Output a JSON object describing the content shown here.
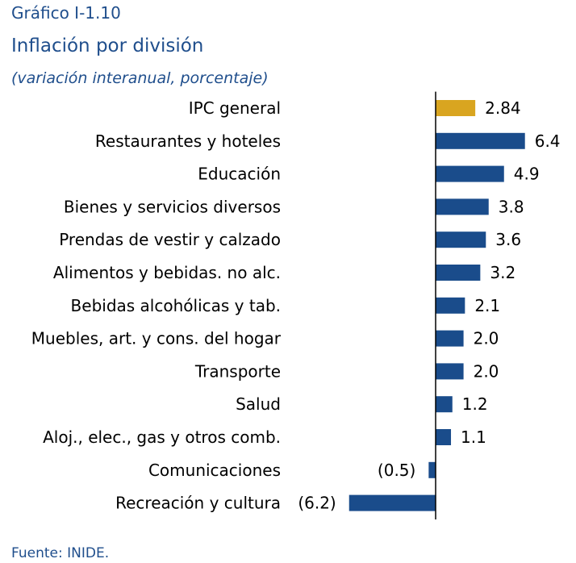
{
  "header": {
    "label": "Gráfico I-1.10",
    "title": "Inflación por división",
    "subtitle": "(variación interanual, porcentaje)"
  },
  "footer": {
    "source": "Fuente: INIDE."
  },
  "chart_data": {
    "type": "bar",
    "orientation": "horizontal",
    "title": "Inflación por división",
    "subtitle": "(variación interanual, porcentaje)",
    "categories": [
      "IPC general",
      "Restaurantes y hoteles",
      "Educación",
      "Bienes y servicios diversos",
      "Prendas de vestir y calzado",
      "Alimentos y bebidas. no alc.",
      "Bebidas alcohólicas y tab.",
      "Muebles, art. y cons. del hogar",
      "Transporte",
      "Salud",
      "Aloj.,  elec., gas y otros comb.",
      "Comunicaciones",
      "Recreación y cultura"
    ],
    "values": [
      2.84,
      6.4,
      4.9,
      3.8,
      3.6,
      3.2,
      2.1,
      2.0,
      2.0,
      1.2,
      1.1,
      -0.5,
      -6.2
    ],
    "value_labels": [
      "2.84",
      "6.4",
      "4.9",
      "3.8",
      "3.6",
      "3.2",
      "2.1",
      "2.0",
      "2.0",
      "1.2",
      "1.1",
      "(0.5)",
      "(6.2)"
    ],
    "colors": {
      "highlight": "#d9a520",
      "bars": "#1a4c8b",
      "axis": "#000000"
    },
    "highlight_index": 0,
    "xlim": [
      -6.2,
      6.4
    ],
    "grid": false,
    "legend": "none"
  }
}
